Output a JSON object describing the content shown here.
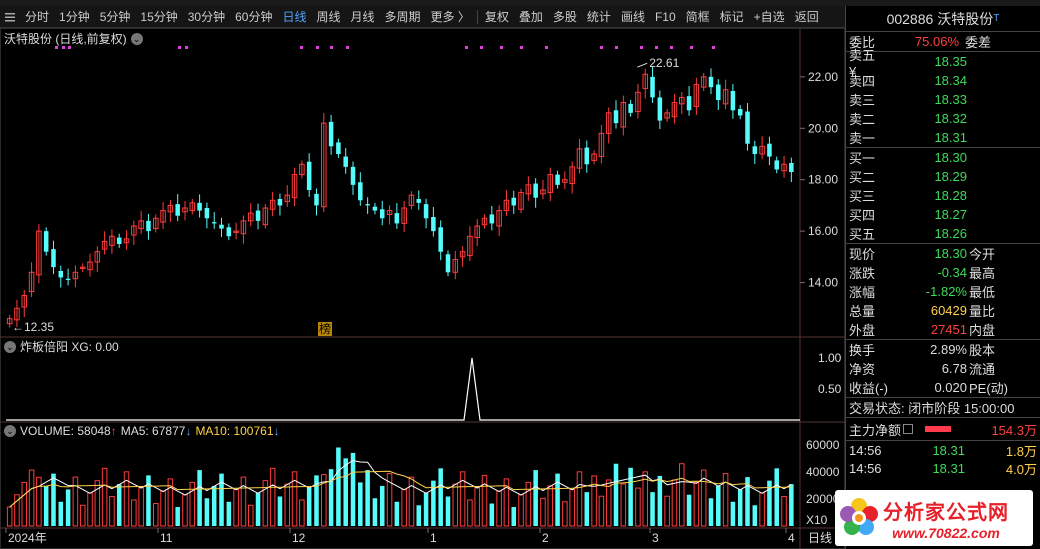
{
  "toolbar": {
    "items": [
      {
        "label": "分时",
        "active": false
      },
      {
        "label": "1分钟",
        "active": false
      },
      {
        "label": "5分钟",
        "active": false
      },
      {
        "label": "15分钟",
        "active": false
      },
      {
        "label": "30分钟",
        "active": false
      },
      {
        "label": "60分钟",
        "active": false
      },
      {
        "label": "日线",
        "active": true
      },
      {
        "label": "周线",
        "active": false
      },
      {
        "label": "月线",
        "active": false
      },
      {
        "label": "多周期",
        "active": false
      },
      {
        "label": "更多 〉",
        "active": false
      }
    ],
    "tools": [
      "复权",
      "叠加",
      "多股",
      "统计",
      "画线",
      "F10",
      "简框",
      "标记",
      "+自选",
      "返回"
    ]
  },
  "main_chart": {
    "title": "沃特股份 (日线,前复权)",
    "yticks": [
      "22.00",
      "20.00",
      "18.00",
      "16.00",
      "14.00"
    ],
    "high_label": "22.61",
    "low_label": "12.35",
    "badge": "榜"
  },
  "indicator": {
    "legend": "炸板倍阳  XG: 0.00",
    "yticks": [
      "1.00",
      "0.50"
    ]
  },
  "volume": {
    "vol_label": "VOLUME: 58048",
    "ma5_label": "MA5: 67877",
    "ma10_label": "MA10: 100761",
    "yticks": [
      "60000",
      "40000",
      "20000",
      "X10"
    ],
    "colors": {
      "up": "#ff3b3b",
      "down": "#54fcfc",
      "ma5": "#ffffff",
      "ma10": "#ffd24a"
    }
  },
  "xaxis": {
    "labels": [
      "2024年",
      "11",
      "12",
      "1",
      "2",
      "3",
      "4"
    ],
    "period": "日线"
  },
  "chart_data": {
    "type": "candlestick",
    "title": "沃特股份 (日线,前复权)",
    "ylim": [
      12.0,
      23.2
    ],
    "high": 22.61,
    "low": 12.35,
    "closes": [
      12.6,
      13.0,
      13.5,
      14.4,
      16.0,
      15.2,
      14.6,
      14.2,
      14.1,
      14.4,
      14.6,
      14.8,
      15.2,
      15.6,
      15.8,
      15.5,
      15.7,
      16.2,
      16.4,
      16.0,
      16.5,
      16.8,
      17.0,
      16.6,
      16.9,
      17.1,
      16.8,
      16.5,
      16.3,
      16.1,
      15.8,
      16.0,
      16.4,
      16.7,
      16.4,
      16.9,
      17.2,
      17.0,
      17.4,
      18.2,
      18.6,
      17.6,
      17.0,
      20.2,
      19.3,
      19.0,
      18.5,
      17.8,
      17.2,
      17.0,
      16.8,
      16.5,
      16.8,
      16.3,
      16.9,
      17.4,
      17.1,
      16.5,
      16.0,
      15.2,
      14.4,
      14.9,
      15.2,
      15.8,
      16.2,
      16.5,
      16.3,
      16.8,
      17.2,
      17.0,
      17.5,
      17.8,
      17.3,
      17.6,
      18.2,
      17.8,
      18.0,
      18.5,
      19.2,
      18.6,
      19.0,
      19.8,
      20.6,
      20.2,
      21.0,
      20.6,
      21.4,
      22.1,
      21.2,
      20.3,
      20.6,
      21.0,
      21.2,
      20.7,
      21.7,
      22.0,
      21.6,
      21.1,
      21.5,
      20.7,
      20.5,
      19.4,
      19.0,
      19.3,
      18.9,
      18.4,
      18.6,
      18.3
    ]
  }
}
